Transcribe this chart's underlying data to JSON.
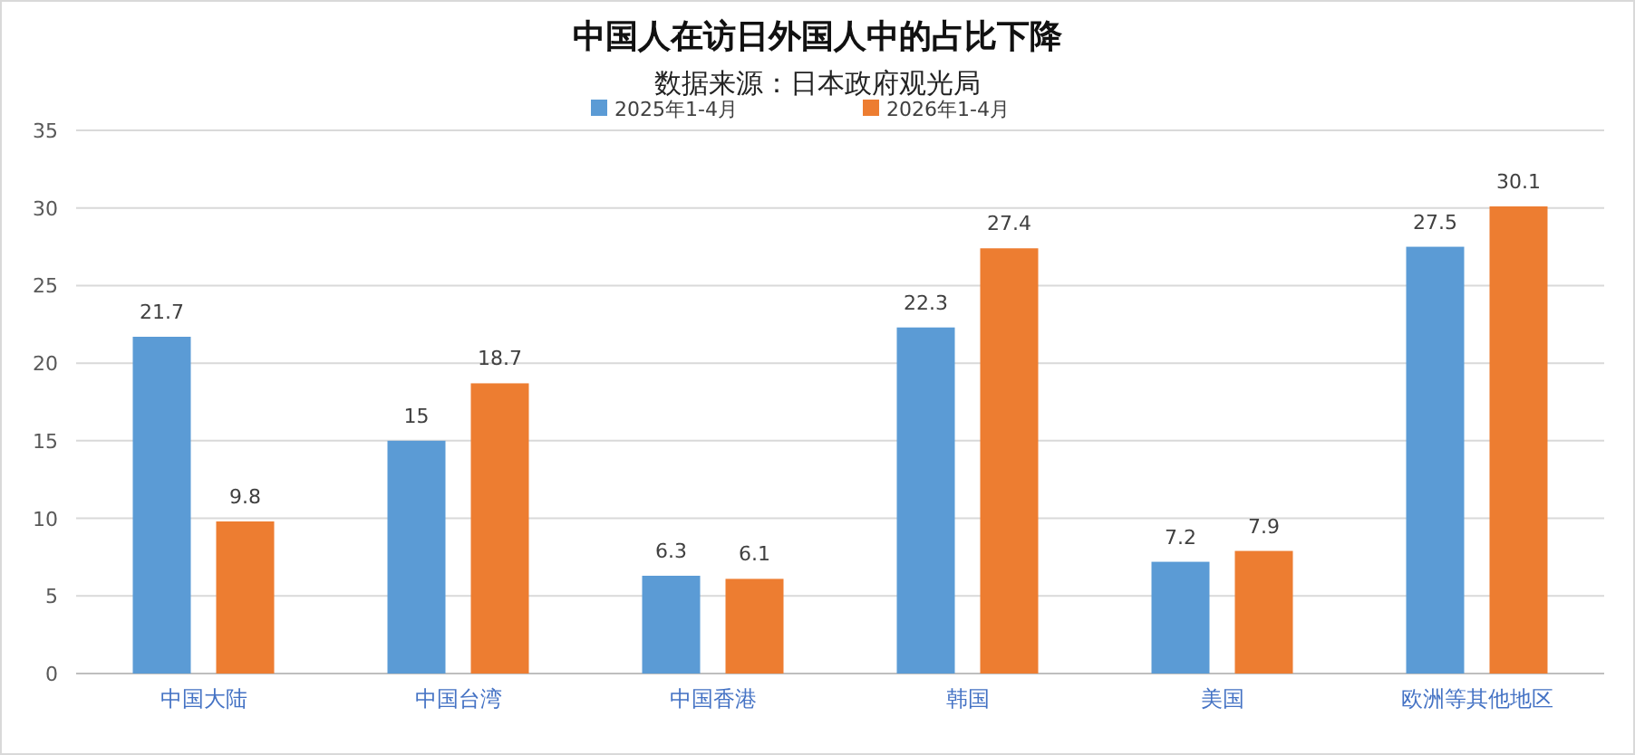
{
  "chart_data": {
    "type": "bar",
    "title": "中国人在访日外国人中的占比下降",
    "subtitle": "数据来源：日本政府观光局",
    "categories": [
      "中国大陆",
      "中国台湾",
      "中国香港",
      "韩国",
      "美国",
      "欧洲等其他地区"
    ],
    "series": [
      {
        "name": "2025年1-4月",
        "color": "#5b9bd5",
        "values": [
          21.7,
          15,
          6.3,
          22.3,
          7.2,
          27.5
        ]
      },
      {
        "name": "2026年1-4月",
        "color": "#ed7d31",
        "values": [
          9.8,
          18.7,
          6.1,
          27.4,
          7.9,
          30.1
        ]
      }
    ],
    "ylim": [
      0,
      35
    ],
    "yticks": [
      0,
      5,
      10,
      15,
      20,
      25,
      30,
      35
    ],
    "grid": "y",
    "legend": "top",
    "data_labels": true
  }
}
